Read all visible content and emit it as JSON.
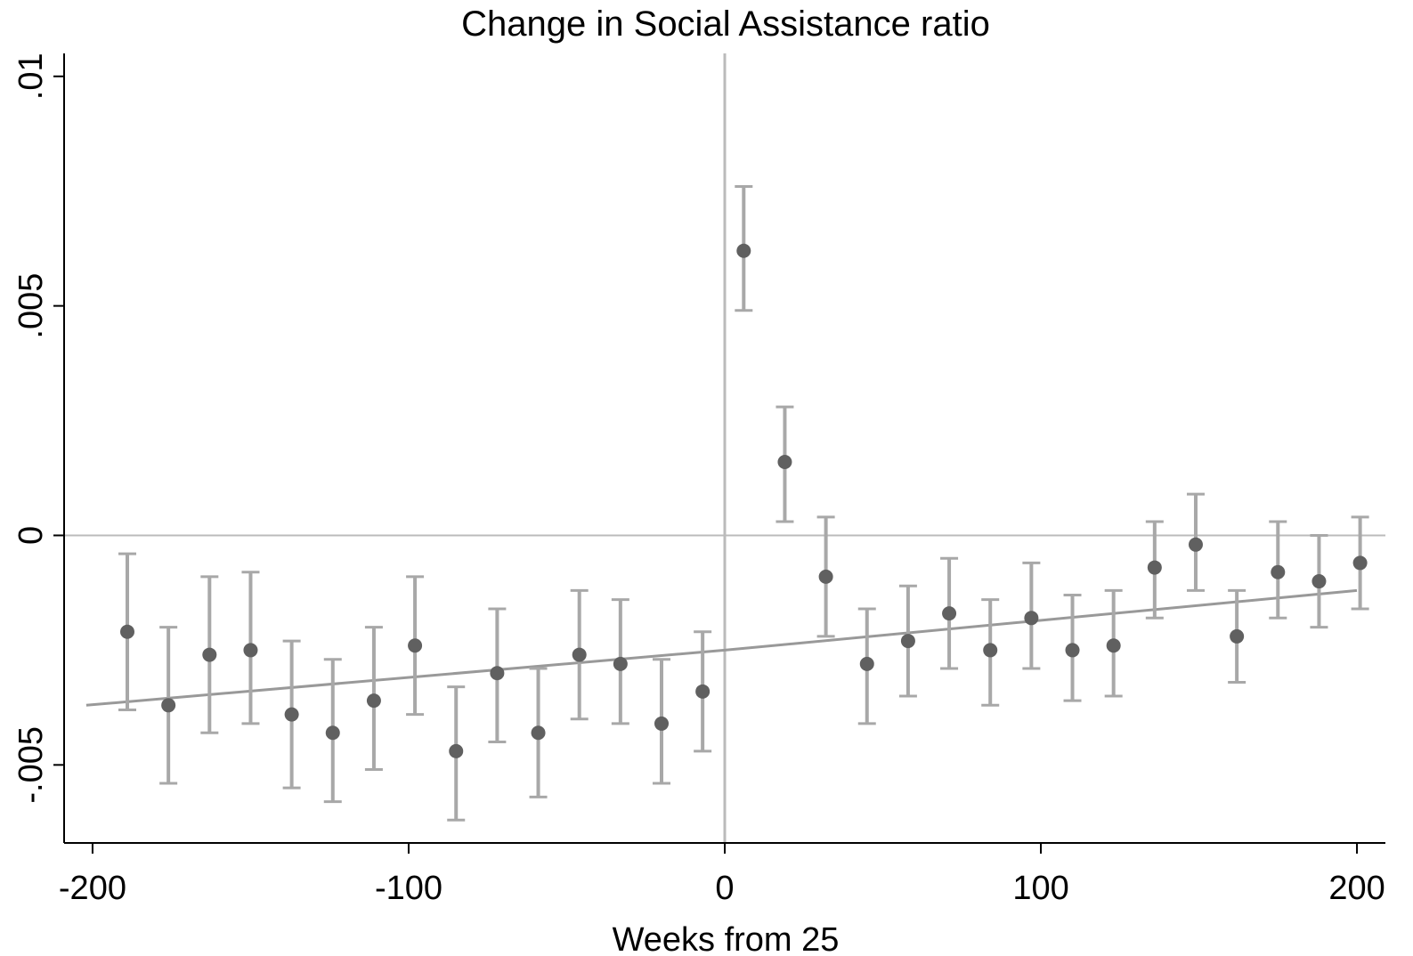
{
  "chart_data": {
    "type": "scatter",
    "title": "Change in Social Assistance ratio",
    "xlabel": "Weeks from 25",
    "ylabel": "",
    "xlim": [
      -209,
      209
    ],
    "ylim": [
      -0.0067,
      0.0105
    ],
    "x_ticks": [
      {
        "value": -200,
        "label": "-200"
      },
      {
        "value": -100,
        "label": "-100"
      },
      {
        "value": 0,
        "label": "0"
      },
      {
        "value": 100,
        "label": "100"
      },
      {
        "value": 200,
        "label": "200"
      }
    ],
    "y_ticks": [
      {
        "value": -0.005,
        "label": "-.005"
      },
      {
        "value": 0,
        "label": "0"
      },
      {
        "value": 0.005,
        "label": ".005"
      },
      {
        "value": 0.01,
        "label": ".01"
      }
    ],
    "grid": false,
    "reference_lines": {
      "x": 0,
      "y": 0
    },
    "fit_line": [
      {
        "x": -202,
        "y": -0.0037
      },
      {
        "x": 0,
        "y": -0.0025
      },
      {
        "x": 200,
        "y": -0.0012
      }
    ],
    "series": [
      {
        "points": [
          {
            "x": -189,
            "y": -0.0021,
            "lo": -0.0038,
            "hi": -0.0004
          },
          {
            "x": -176,
            "y": -0.0037,
            "lo": -0.0054,
            "hi": -0.002
          },
          {
            "x": -163,
            "y": -0.0026,
            "lo": -0.0043,
            "hi": -0.0009
          },
          {
            "x": -150,
            "y": -0.0025,
            "lo": -0.0041,
            "hi": -0.0008
          },
          {
            "x": -137,
            "y": -0.0039,
            "lo": -0.0055,
            "hi": -0.0023
          },
          {
            "x": -124,
            "y": -0.0043,
            "lo": -0.0058,
            "hi": -0.0027
          },
          {
            "x": -111,
            "y": -0.0036,
            "lo": -0.0051,
            "hi": -0.002
          },
          {
            "x": -98,
            "y": -0.0024,
            "lo": -0.0039,
            "hi": -0.0009
          },
          {
            "x": -85,
            "y": -0.0047,
            "lo": -0.0062,
            "hi": -0.0033
          },
          {
            "x": -72,
            "y": -0.003,
            "lo": -0.0045,
            "hi": -0.0016
          },
          {
            "x": -59,
            "y": -0.0043,
            "lo": -0.0057,
            "hi": -0.0029
          },
          {
            "x": -46,
            "y": -0.0026,
            "lo": -0.004,
            "hi": -0.0012
          },
          {
            "x": -33,
            "y": -0.0028,
            "lo": -0.0041,
            "hi": -0.0014
          },
          {
            "x": -20,
            "y": -0.0041,
            "lo": -0.0054,
            "hi": -0.0027
          },
          {
            "x": -7,
            "y": -0.0034,
            "lo": -0.0047,
            "hi": -0.0021
          },
          {
            "x": 6,
            "y": 0.0062,
            "lo": 0.0049,
            "hi": 0.0076
          },
          {
            "x": 19,
            "y": 0.0016,
            "lo": 0.0003,
            "hi": 0.0028
          },
          {
            "x": 32,
            "y": -0.0009,
            "lo": -0.0022,
            "hi": 0.0004
          },
          {
            "x": 45,
            "y": -0.0028,
            "lo": -0.0041,
            "hi": -0.0016
          },
          {
            "x": 58,
            "y": -0.0023,
            "lo": -0.0035,
            "hi": -0.0011
          },
          {
            "x": 71,
            "y": -0.0017,
            "lo": -0.0029,
            "hi": -0.0005
          },
          {
            "x": 84,
            "y": -0.0025,
            "lo": -0.0037,
            "hi": -0.0014
          },
          {
            "x": 97,
            "y": -0.0018,
            "lo": -0.0029,
            "hi": -0.0006
          },
          {
            "x": 110,
            "y": -0.0025,
            "lo": -0.0036,
            "hi": -0.0013
          },
          {
            "x": 123,
            "y": -0.0024,
            "lo": -0.0035,
            "hi": -0.0012
          },
          {
            "x": 136,
            "y": -0.0007,
            "lo": -0.0018,
            "hi": 0.0003
          },
          {
            "x": 149,
            "y": -0.0002,
            "lo": -0.0012,
            "hi": 0.0009
          },
          {
            "x": 162,
            "y": -0.0022,
            "lo": -0.0032,
            "hi": -0.0012
          },
          {
            "x": 175,
            "y": -0.0008,
            "lo": -0.0018,
            "hi": 0.0003
          },
          {
            "x": 188,
            "y": -0.001,
            "lo": -0.002,
            "hi": 0.0
          },
          {
            "x": 201,
            "y": -0.0006,
            "lo": -0.0016,
            "hi": 0.0004
          }
        ]
      }
    ],
    "colors": {
      "marker": "#606060",
      "errorbar": "#a8a8a8",
      "fitline": "#999999",
      "refline": "#bbbbbb",
      "axis": "#000000"
    }
  }
}
